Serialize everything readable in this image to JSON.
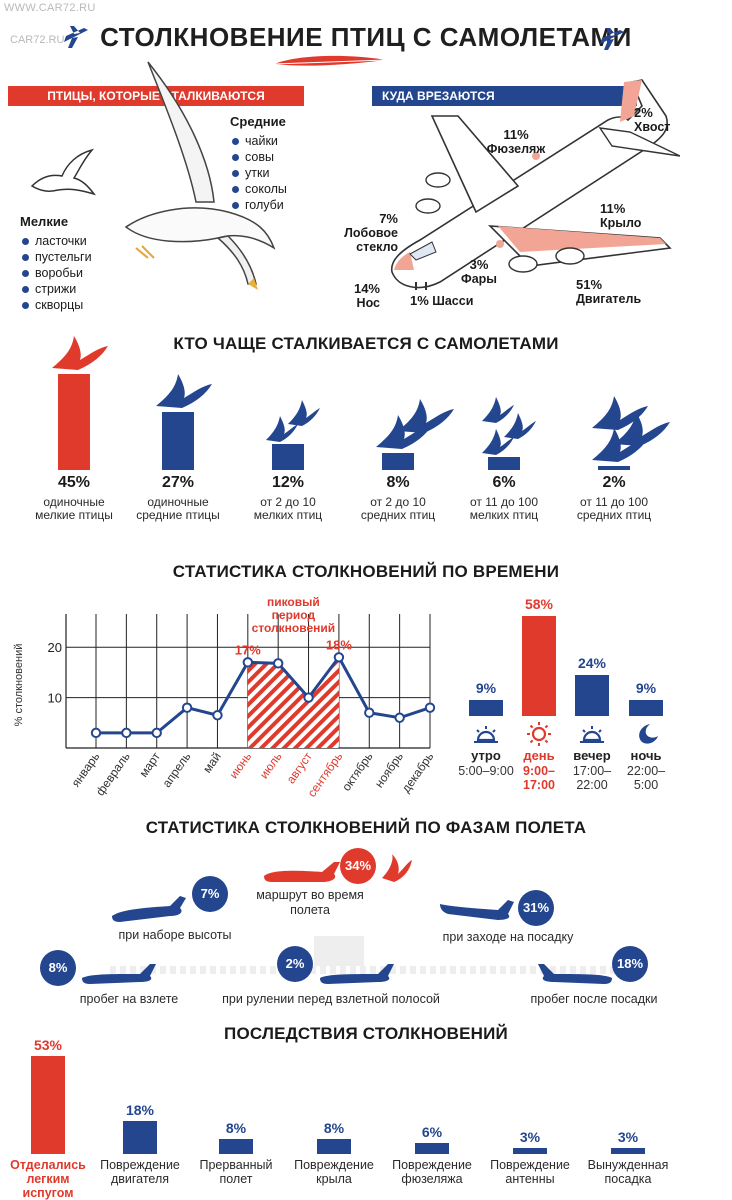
{
  "watermark": {
    "top": "WWW.CAR72.RU",
    "logo": "CAR72.RU"
  },
  "title": "СТОЛКНОВЕНИЕ ПТИЦ С САМОЛЕТАМИ",
  "colors": {
    "blue": "#23468f",
    "red": "#e03a2c"
  },
  "birds_section": {
    "ribbon": "ПТИЦЫ, КОТОРЫЕ СТАЛКИВАЮТСЯ",
    "small": {
      "heading": "Мелкие",
      "items": [
        "ласточки",
        "пустельги",
        "воробьи",
        "стрижи",
        "скворцы"
      ]
    },
    "medium": {
      "heading": "Средние",
      "items": [
        "чайки",
        "совы",
        "утки",
        "соколы",
        "голуби"
      ]
    }
  },
  "impact_section": {
    "ribbon": "КУДА ВРЕЗАЮТСЯ",
    "parts": [
      {
        "pct": "2%",
        "label": "Хвост"
      },
      {
        "pct": "11%",
        "label": "Фюзеляж"
      },
      {
        "pct": "11%",
        "label": "Крыло"
      },
      {
        "pct": "7%",
        "label": "Лобовое стекло"
      },
      {
        "pct": "3%",
        "label": "Фары"
      },
      {
        "pct": "14%",
        "label": "Нос"
      },
      {
        "pct": "1%",
        "label": "Шасси"
      },
      {
        "pct": "51%",
        "label": "Двигатель"
      }
    ]
  },
  "chart_data": [
    {
      "type": "bar",
      "title": "КТО ЧАЩЕ СТАЛКИВАЕТСЯ С САМОЛЕТАМИ",
      "categories": [
        "одиночные мелкие птицы",
        "одиночные средние птицы",
        "от 2 до 10 мелких птиц",
        "от 2 до 10 средних птиц",
        "от 11 до 100 мелких птиц",
        "от 11 до 100 средних птиц"
      ],
      "values": [
        45,
        27,
        12,
        8,
        6,
        2
      ],
      "labels": [
        "45%",
        "27%",
        "12%",
        "8%",
        "6%",
        "2%"
      ],
      "highlight_color": "#e03a2c",
      "color": "#23468f"
    },
    {
      "type": "line",
      "title": "СТАТИСТИКА СТОЛКНОВЕНИЙ ПО ВРЕМЕНИ",
      "ylabel": "% столкновений",
      "x": [
        "январь",
        "февраль",
        "март",
        "апрель",
        "май",
        "июнь",
        "июль",
        "август",
        "сентябрь",
        "октябрь",
        "ноябрь",
        "декабрь"
      ],
      "values": [
        3,
        3,
        3,
        8,
        6.5,
        17,
        16.8,
        10,
        18,
        7,
        6,
        8
      ],
      "ylim": [
        0,
        25
      ],
      "yticks": [
        10,
        20
      ],
      "grid": true,
      "peak_annotation": "пиковый период столкновений",
      "peak_range": [
        "июнь",
        "сентябрь"
      ],
      "labeled_points": [
        {
          "x": "июнь",
          "label": "17%"
        },
        {
          "x": "сентябрь",
          "label": "18%"
        }
      ]
    },
    {
      "type": "bar",
      "categories": [
        "утро",
        "день",
        "вечер",
        "ночь"
      ],
      "times": [
        "5:00–9:00",
        "9:00–17:00",
        "17:00–22:00",
        "22:00–5:00"
      ],
      "values": [
        9,
        58,
        24,
        9
      ],
      "labels": [
        "9%",
        "58%",
        "24%",
        "9%"
      ]
    },
    {
      "type": "table",
      "title": "СТАТИСТИКА СТОЛКНОВЕНИЙ ПО ФАЗАМ ПОЛЕТА",
      "phases": [
        {
          "label": "маршрут во время полета",
          "pct": "34%"
        },
        {
          "label": "при наборе высоты",
          "pct": "7%"
        },
        {
          "label": "при заходе на посадку",
          "pct": "31%"
        },
        {
          "label": "пробег на взлете",
          "pct": "8%"
        },
        {
          "label": "при рулении перед взлетной полосой",
          "pct": "2%"
        },
        {
          "label": "пробег после посадки",
          "pct": "18%"
        }
      ]
    },
    {
      "type": "bar",
      "title": "ПОСЛЕДСТВИЯ СТОЛКНОВЕНИЙ",
      "categories": [
        "Отделались легким испугом",
        "Повреждение двигателя",
        "Прерванный полет",
        "Повреждение крыла",
        "Повреждение фюзеляжа",
        "Повреждение антенны",
        "Вынужденная посадка"
      ],
      "values": [
        53,
        18,
        8,
        8,
        6,
        3,
        3
      ],
      "labels": [
        "53%",
        "18%",
        "8%",
        "8%",
        "6%",
        "3%",
        "3%"
      ]
    }
  ]
}
